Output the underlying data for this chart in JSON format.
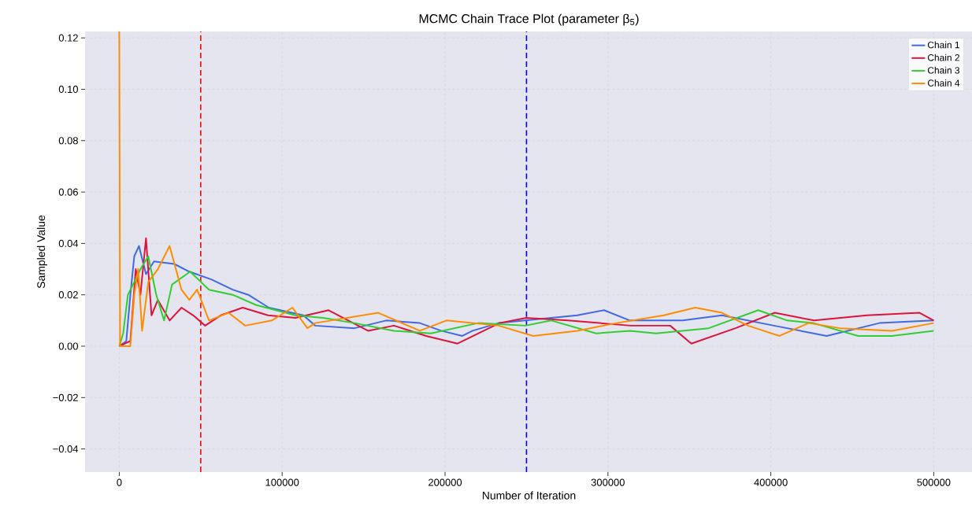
{
  "chart_data": {
    "type": "line",
    "title": "MCMC Chain Trace Plot (parameter β$_{5}$)",
    "xlabel": "Number of Iteration",
    "ylabel": "Sampled Value",
    "xlim": [
      -21000,
      524000
    ],
    "ylim": [
      -0.049,
      0.1225
    ],
    "xticks": [
      0,
      100000,
      200000,
      300000,
      400000,
      500000
    ],
    "yticks": [
      {
        "value": -0.04,
        "label": "−0.04"
      },
      {
        "value": -0.02,
        "label": "−0.02"
      },
      {
        "value": 0,
        "label": "0.00"
      },
      {
        "value": 0.02,
        "label": "0.02"
      },
      {
        "value": 0.04,
        "label": "0.04"
      },
      {
        "value": 0.06,
        "label": "0.06"
      },
      {
        "value": 0.08,
        "label": "0.08"
      },
      {
        "value": 0.1,
        "label": "0.10"
      },
      {
        "value": 0.12,
        "label": "0.12"
      }
    ],
    "grid": true,
    "legend": "top right",
    "ref_lines": [
      {
        "axis": "x",
        "value": 50000,
        "color": "#ff0000",
        "line_style": "dashed"
      },
      {
        "axis": "x",
        "value": 250000,
        "color": "#0000ff",
        "line_style": "dashed"
      }
    ],
    "series": [
      {
        "name": "Chain 1",
        "color": "#4169e1",
        "x": [
          0,
          4300,
          6800,
          9200,
          12100,
          16400,
          21300,
          33800,
          43000,
          56500,
          69600,
          79200,
          91800,
          113000,
          120300,
          144400,
          163800,
          184500,
          197600,
          210600,
          216900,
          232900,
          265200,
          281200,
          297600,
          313500,
          345900,
          370000,
          401900,
          434300,
          466700,
          500000
        ],
        "values": [
          0,
          0.002,
          0.02,
          0.035,
          0.039,
          0.028,
          0.033,
          0.032,
          0.029,
          0.026,
          0.022,
          0.02,
          0.015,
          0.012,
          0.008,
          0.007,
          0.01,
          0.009,
          0.006,
          0.004,
          0.006,
          0.009,
          0.011,
          0.012,
          0.014,
          0.01,
          0.01,
          0.012,
          0.008,
          0.004,
          0.009,
          0.01
        ]
      },
      {
        "name": "Chain 2",
        "color": "#dc143c",
        "x": [
          0,
          6800,
          10100,
          13000,
          16400,
          19800,
          23700,
          30900,
          38200,
          45400,
          52700,
          62300,
          75800,
          91300,
          108200,
          128500,
          152700,
          168600,
          188400,
          207700,
          233400,
          249800,
          275400,
          314000,
          338200,
          351200,
          378300,
          402400,
          426600,
          459000,
          491300,
          500000
        ],
        "values": [
          0,
          0.002,
          0.03,
          0.02,
          0.042,
          0.012,
          0.018,
          0.01,
          0.015,
          0.012,
          0.008,
          0.012,
          0.015,
          0.012,
          0.011,
          0.014,
          0.006,
          0.008,
          0.004,
          0.001,
          0.009,
          0.011,
          0.01,
          0.008,
          0.008,
          0.001,
          0.007,
          0.013,
          0.01,
          0.012,
          0.013,
          0.01
        ]
      },
      {
        "name": "Chain 3",
        "color": "#32cd32",
        "x": [
          0,
          2400,
          5300,
          9200,
          13000,
          17800,
          22700,
          27500,
          32400,
          43500,
          55100,
          69600,
          84100,
          108200,
          125100,
          144400,
          168600,
          191300,
          220300,
          249300,
          265200,
          292800,
          313500,
          329500,
          361800,
          392300,
          410100,
          426100,
          453600,
          474400,
          500000
        ],
        "values": [
          0,
          0.005,
          0.02,
          0.025,
          0.03,
          0.035,
          0.02,
          0.01,
          0.024,
          0.029,
          0.022,
          0.02,
          0.016,
          0.012,
          0.011,
          0.009,
          0.006,
          0.005,
          0.009,
          0.008,
          0.01,
          0.005,
          0.006,
          0.005,
          0.007,
          0.014,
          0.01,
          0.009,
          0.004,
          0.004,
          0.006
        ]
      },
      {
        "name": "Chain 4",
        "color": "#ff8c00",
        "x": [
          0,
          500,
          6800,
          9200,
          11600,
          14000,
          17800,
          23700,
          30900,
          38200,
          43000,
          47800,
          55100,
          67100,
          77300,
          93700,
          106300,
          115500,
          120300,
          159000,
          184500,
          200900,
          232900,
          254100,
          281200,
          305300,
          334300,
          353600,
          370000,
          386000,
          405300,
          423200,
          442500,
          474400,
          500000
        ],
        "values": [
          0.1225,
          0,
          0,
          0.02,
          0.03,
          0.006,
          0.025,
          0.03,
          0.039,
          0.022,
          0.018,
          0.022,
          0.01,
          0.013,
          0.008,
          0.01,
          0.015,
          0.007,
          0.009,
          0.013,
          0.006,
          0.01,
          0.008,
          0.004,
          0.006,
          0.009,
          0.012,
          0.015,
          0.013,
          0.008,
          0.004,
          0.009,
          0.007,
          0.006,
          0.009
        ]
      }
    ]
  }
}
